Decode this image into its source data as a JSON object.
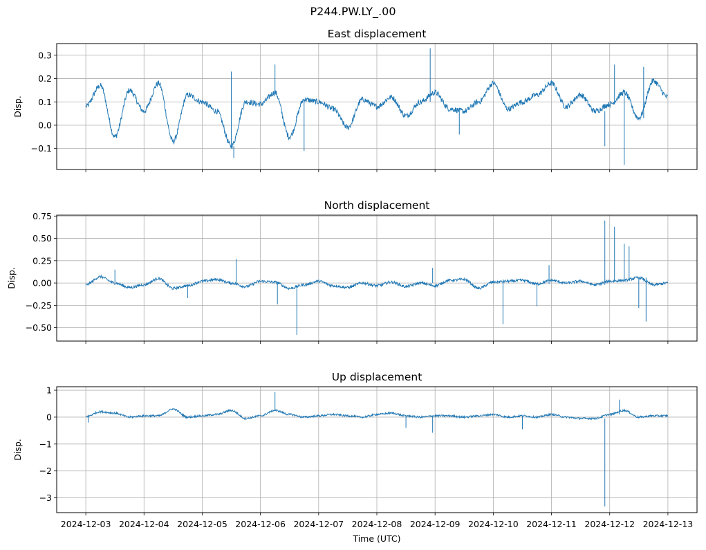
{
  "figure": {
    "title": "P244.PW.LY_.00"
  },
  "chart_data": [
    {
      "type": "line",
      "title": "East displacement",
      "ylabel": "Disp.",
      "xlabel": "",
      "xlim": [
        "2024-12-02T12:00",
        "2024-12-13T12:00"
      ],
      "ylim": [
        -0.19,
        0.35
      ],
      "yticks": [
        -0.1,
        0.0,
        0.1,
        0.2,
        0.3
      ],
      "ytick_labels": [
        "−0.1",
        "0.0",
        "0.1",
        "0.2",
        "0.3"
      ],
      "grid": true,
      "color": "#1f77b4",
      "series": [
        {
          "x": [
            "2024-12-03T00:00",
            "2024-12-03T06:00",
            "2024-12-03T12:00",
            "2024-12-03T18:00",
            "2024-12-04T00:00",
            "2024-12-04T06:00",
            "2024-12-04T12:00",
            "2024-12-04T18:00",
            "2024-12-05T00:00",
            "2024-12-05T06:00",
            "2024-12-05T12:00",
            "2024-12-05T18:00",
            "2024-12-06T00:00",
            "2024-12-06T06:00",
            "2024-12-06T12:00",
            "2024-12-06T18:00",
            "2024-12-07T00:00",
            "2024-12-07T06:00",
            "2024-12-07T12:00",
            "2024-12-07T18:00",
            "2024-12-08T00:00",
            "2024-12-08T06:00",
            "2024-12-08T12:00",
            "2024-12-08T18:00",
            "2024-12-09T00:00",
            "2024-12-09T06:00",
            "2024-12-09T12:00",
            "2024-12-09T18:00",
            "2024-12-10T00:00",
            "2024-12-10T06:00",
            "2024-12-10T12:00",
            "2024-12-10T18:00",
            "2024-12-11T00:00",
            "2024-12-11T06:00",
            "2024-12-11T12:00",
            "2024-12-11T18:00",
            "2024-12-12T00:00",
            "2024-12-12T06:00",
            "2024-12-12T12:00",
            "2024-12-12T18:00",
            "2024-12-13T00:00"
          ],
          "y": [
            0.08,
            0.17,
            -0.05,
            0.15,
            0.06,
            0.18,
            -0.07,
            0.13,
            0.1,
            0.06,
            -0.09,
            0.1,
            0.09,
            0.14,
            -0.05,
            0.11,
            0.1,
            0.07,
            -0.01,
            0.11,
            0.08,
            0.12,
            0.04,
            0.1,
            0.14,
            0.07,
            0.06,
            0.1,
            0.18,
            0.07,
            0.1,
            0.13,
            0.18,
            0.08,
            0.13,
            0.06,
            0.09,
            0.14,
            0.03,
            0.19,
            0.12
          ]
        }
      ],
      "spikes": [
        {
          "x": "2024-12-05T12:00",
          "y": 0.23
        },
        {
          "x": "2024-12-05T13:00",
          "y": -0.14
        },
        {
          "x": "2024-12-06T06:00",
          "y": 0.26
        },
        {
          "x": "2024-12-06T18:00",
          "y": -0.11
        },
        {
          "x": "2024-12-08T22:00",
          "y": 0.33
        },
        {
          "x": "2024-12-09T10:00",
          "y": -0.04
        },
        {
          "x": "2024-12-11T22:00",
          "y": -0.09
        },
        {
          "x": "2024-12-12T02:00",
          "y": 0.26
        },
        {
          "x": "2024-12-12T06:00",
          "y": -0.17
        },
        {
          "x": "2024-12-12T14:00",
          "y": 0.25
        }
      ]
    },
    {
      "type": "line",
      "title": "North displacement",
      "ylabel": "Disp.",
      "xlabel": "",
      "xlim": [
        "2024-12-02T12:00",
        "2024-12-13T12:00"
      ],
      "ylim": [
        -0.65,
        0.76
      ],
      "yticks": [
        -0.5,
        -0.25,
        0.0,
        0.25,
        0.5,
        0.75
      ],
      "ytick_labels": [
        "−0.50",
        "−0.25",
        "0.00",
        "0.25",
        "0.50",
        "0.75"
      ],
      "grid": true,
      "color": "#1f77b4",
      "series": [
        {
          "x": [
            "2024-12-03T00:00",
            "2024-12-03T06:00",
            "2024-12-03T12:00",
            "2024-12-03T18:00",
            "2024-12-04T00:00",
            "2024-12-04T06:00",
            "2024-12-04T12:00",
            "2024-12-04T18:00",
            "2024-12-05T00:00",
            "2024-12-05T06:00",
            "2024-12-05T12:00",
            "2024-12-05T18:00",
            "2024-12-06T00:00",
            "2024-12-06T06:00",
            "2024-12-06T12:00",
            "2024-12-06T18:00",
            "2024-12-07T00:00",
            "2024-12-07T06:00",
            "2024-12-07T12:00",
            "2024-12-07T18:00",
            "2024-12-08T00:00",
            "2024-12-08T06:00",
            "2024-12-08T12:00",
            "2024-12-08T18:00",
            "2024-12-09T00:00",
            "2024-12-09T06:00",
            "2024-12-09T12:00",
            "2024-12-09T18:00",
            "2024-12-10T00:00",
            "2024-12-10T06:00",
            "2024-12-10T12:00",
            "2024-12-10T18:00",
            "2024-12-11T00:00",
            "2024-12-11T06:00",
            "2024-12-11T12:00",
            "2024-12-11T18:00",
            "2024-12-12T00:00",
            "2024-12-12T06:00",
            "2024-12-12T12:00",
            "2024-12-12T18:00",
            "2024-12-13T00:00"
          ],
          "y": [
            -0.02,
            0.07,
            0.0,
            -0.05,
            -0.02,
            0.05,
            -0.06,
            -0.03,
            0.02,
            0.04,
            0.0,
            -0.04,
            0.02,
            0.01,
            -0.06,
            -0.02,
            0.02,
            -0.03,
            -0.05,
            0.0,
            -0.03,
            0.01,
            -0.04,
            0.0,
            -0.03,
            0.03,
            0.04,
            -0.06,
            0.01,
            0.02,
            0.03,
            -0.01,
            0.03,
            0.0,
            0.02,
            -0.02,
            0.02,
            0.03,
            0.06,
            -0.02,
            0.0
          ]
        }
      ],
      "spikes": [
        {
          "x": "2024-12-03T12:00",
          "y": 0.15
        },
        {
          "x": "2024-12-04T18:00",
          "y": -0.17
        },
        {
          "x": "2024-12-05T14:00",
          "y": 0.27
        },
        {
          "x": "2024-12-06T07:00",
          "y": -0.24
        },
        {
          "x": "2024-12-06T15:00",
          "y": -0.58
        },
        {
          "x": "2024-12-08T23:00",
          "y": 0.17
        },
        {
          "x": "2024-12-10T04:00",
          "y": -0.46
        },
        {
          "x": "2024-12-10T18:00",
          "y": -0.26
        },
        {
          "x": "2024-12-10T23:00",
          "y": 0.2
        },
        {
          "x": "2024-12-11T22:00",
          "y": 0.7
        },
        {
          "x": "2024-12-12T02:00",
          "y": 0.63
        },
        {
          "x": "2024-12-12T06:00",
          "y": 0.44
        },
        {
          "x": "2024-12-12T08:00",
          "y": 0.41
        },
        {
          "x": "2024-12-12T12:00",
          "y": -0.28
        },
        {
          "x": "2024-12-12T15:00",
          "y": -0.43
        }
      ]
    },
    {
      "type": "line",
      "title": "Up displacement",
      "ylabel": "Disp.",
      "xlabel": "Time (UTC)",
      "xlim": [
        "2024-12-02T12:00",
        "2024-12-13T12:00"
      ],
      "ylim": [
        -3.55,
        1.13
      ],
      "yticks": [
        -3,
        -2,
        -1,
        0,
        1
      ],
      "ytick_labels": [
        "−3",
        "−2",
        "−1",
        "0",
        "1"
      ],
      "xtick_labels": [
        "2024-12-03",
        "2024-12-04",
        "2024-12-05",
        "2024-12-06",
        "2024-12-07",
        "2024-12-08",
        "2024-12-09",
        "2024-12-10",
        "2024-12-11",
        "2024-12-12",
        "2024-12-13"
      ],
      "grid": true,
      "color": "#1f77b4",
      "series": [
        {
          "x": [
            "2024-12-03T00:00",
            "2024-12-03T06:00",
            "2024-12-03T12:00",
            "2024-12-03T18:00",
            "2024-12-04T00:00",
            "2024-12-04T06:00",
            "2024-12-04T12:00",
            "2024-12-04T18:00",
            "2024-12-05T00:00",
            "2024-12-05T06:00",
            "2024-12-05T12:00",
            "2024-12-05T18:00",
            "2024-12-06T00:00",
            "2024-12-06T06:00",
            "2024-12-06T12:00",
            "2024-12-06T18:00",
            "2024-12-07T00:00",
            "2024-12-07T06:00",
            "2024-12-07T12:00",
            "2024-12-07T18:00",
            "2024-12-08T00:00",
            "2024-12-08T06:00",
            "2024-12-08T12:00",
            "2024-12-08T18:00",
            "2024-12-09T00:00",
            "2024-12-09T06:00",
            "2024-12-09T12:00",
            "2024-12-09T18:00",
            "2024-12-10T00:00",
            "2024-12-10T06:00",
            "2024-12-10T12:00",
            "2024-12-10T18:00",
            "2024-12-11T00:00",
            "2024-12-11T06:00",
            "2024-12-11T12:00",
            "2024-12-11T18:00",
            "2024-12-12T00:00",
            "2024-12-12T06:00",
            "2024-12-12T12:00",
            "2024-12-12T18:00",
            "2024-12-13T00:00"
          ],
          "y": [
            0.02,
            0.2,
            0.15,
            0.0,
            0.05,
            0.05,
            0.3,
            0.0,
            0.05,
            0.1,
            0.25,
            -0.05,
            0.05,
            0.25,
            0.1,
            0.0,
            0.05,
            0.1,
            0.05,
            0.0,
            0.1,
            0.15,
            0.05,
            0.0,
            0.05,
            0.05,
            0.0,
            0.05,
            0.1,
            0.0,
            0.05,
            0.0,
            0.1,
            0.0,
            -0.05,
            -0.05,
            0.1,
            0.25,
            0.0,
            0.05,
            0.05
          ]
        }
      ],
      "spikes": [
        {
          "x": "2024-12-03T01:00",
          "y": -0.2
        },
        {
          "x": "2024-12-06T06:00",
          "y": 0.93
        },
        {
          "x": "2024-12-08T12:00",
          "y": -0.4
        },
        {
          "x": "2024-12-08T23:00",
          "y": -0.58
        },
        {
          "x": "2024-12-10T12:00",
          "y": -0.45
        },
        {
          "x": "2024-12-11T22:00",
          "y": -3.32
        },
        {
          "x": "2024-12-12T04:00",
          "y": 0.65
        }
      ]
    }
  ]
}
